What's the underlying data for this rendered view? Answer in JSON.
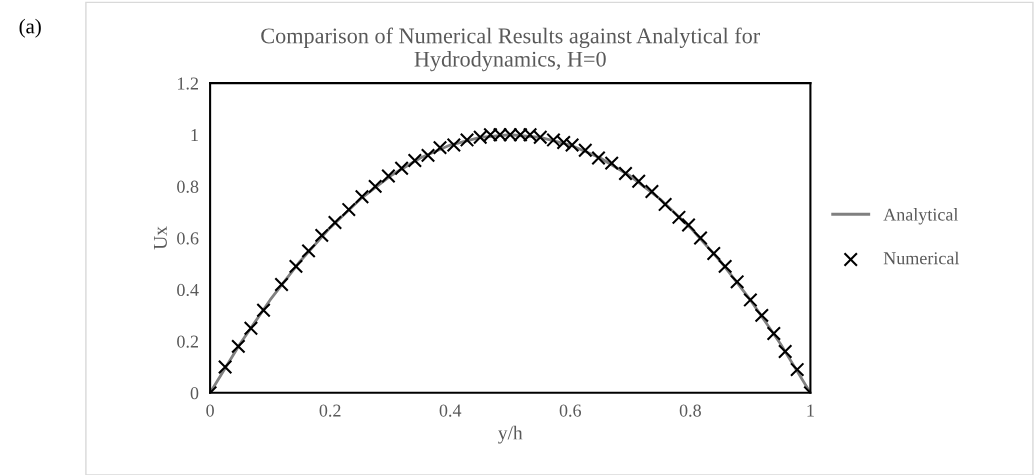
{
  "chart_data": {
    "type": "line",
    "title": "Comparison of Numerical Results against Analytical for\nHydrodynamics, H=0",
    "xlabel": "y/h",
    "ylabel": "Ux",
    "annotations": [
      "(a)"
    ],
    "xlim": [
      0,
      1
    ],
    "xticks": [
      0,
      0.2,
      0.4,
      0.6,
      0.8,
      1
    ],
    "ylim": [
      0,
      1.2
    ],
    "yticks": [
      0,
      0.2,
      0.4,
      0.6,
      0.8,
      1,
      1.2
    ],
    "grid": false,
    "legend": "right",
    "series": [
      {
        "name": "Analytical",
        "color": "#808080",
        "marker": "none",
        "line_style": "solid",
        "x": [
          0,
          0.05,
          0.1,
          0.15,
          0.2,
          0.25,
          0.3,
          0.35,
          0.4,
          0.45,
          0.5,
          0.55,
          0.6,
          0.65,
          0.7,
          0.75,
          0.8,
          0.85,
          0.9,
          0.95,
          1
        ],
        "values": [
          0,
          0.19,
          0.36,
          0.51,
          0.64,
          0.75,
          0.84,
          0.91,
          0.96,
          0.99,
          1,
          0.99,
          0.96,
          0.91,
          0.84,
          0.75,
          0.64,
          0.51,
          0.36,
          0.19,
          0
        ]
      },
      {
        "name": "Numerical",
        "type": "scatter",
        "color": "#000000",
        "marker": "cross",
        "x": [
          0,
          0.025,
          0.047,
          0.068,
          0.089,
          0.119,
          0.143,
          0.164,
          0.186,
          0.208,
          0.231,
          0.253,
          0.275,
          0.297,
          0.319,
          0.341,
          0.363,
          0.383,
          0.406,
          0.428,
          0.45,
          0.467,
          0.483,
          0.5,
          0.517,
          0.533,
          0.55,
          0.572,
          0.589,
          0.603,
          0.625,
          0.647,
          0.669,
          0.692,
          0.714,
          0.736,
          0.758,
          0.781,
          0.797,
          0.817,
          0.839,
          0.858,
          0.878,
          0.9,
          0.919,
          0.939,
          0.958,
          0.978,
          1
        ],
        "values": [
          0,
          0.1,
          0.18,
          0.25,
          0.32,
          0.42,
          0.49,
          0.55,
          0.61,
          0.66,
          0.71,
          0.76,
          0.8,
          0.84,
          0.87,
          0.9,
          0.92,
          0.95,
          0.96,
          0.98,
          0.99,
          1,
          1,
          1,
          1,
          1,
          0.99,
          0.98,
          0.97,
          0.96,
          0.94,
          0.91,
          0.89,
          0.85,
          0.82,
          0.78,
          0.73,
          0.68,
          0.65,
          0.6,
          0.54,
          0.49,
          0.43,
          0.36,
          0.3,
          0.23,
          0.16,
          0.09,
          0
        ]
      }
    ]
  }
}
